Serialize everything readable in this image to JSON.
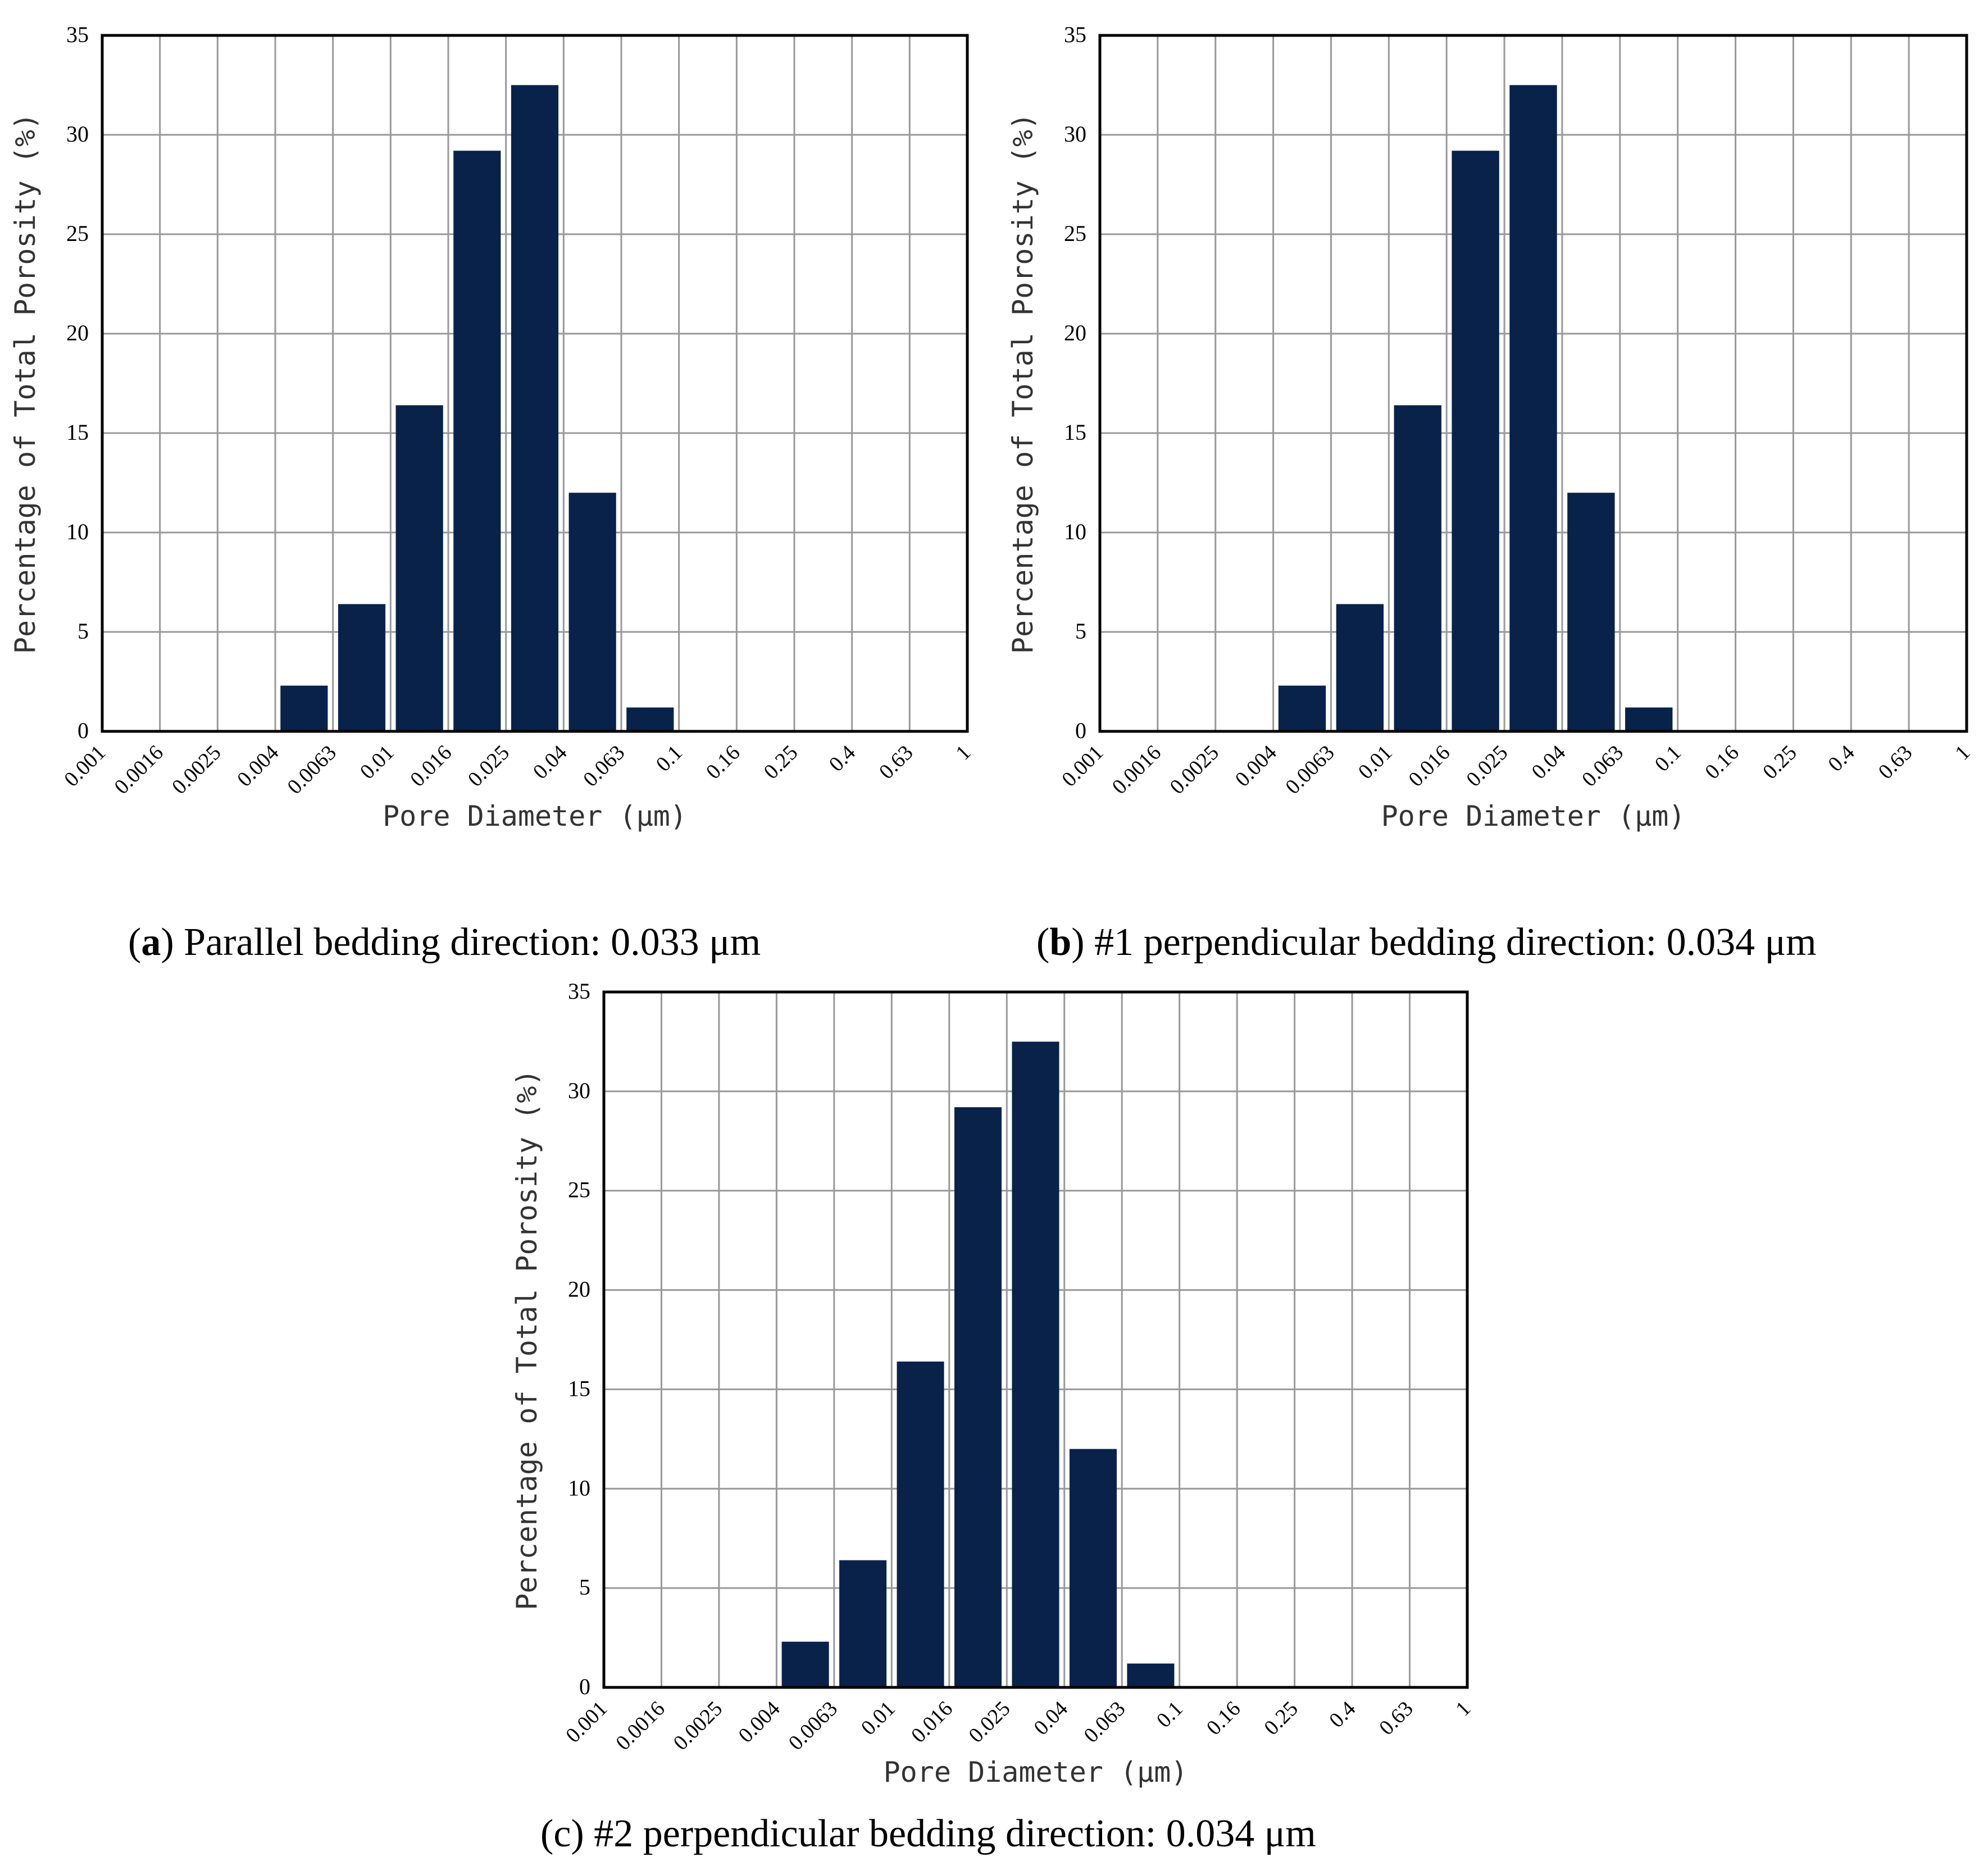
{
  "figure": {
    "captions": [
      {
        "letter": "a",
        "text": "Parallel bedding direction: 0.033 μm"
      },
      {
        "letter": "b",
        "text": "#1 perpendicular bedding direction: 0.034 μm"
      },
      {
        "letter": "c",
        "text": "#2 perpendicular bedding direction: 0.034 μm"
      }
    ]
  },
  "colors": {
    "bar": "#08224a",
    "grid": "#999999",
    "axis": "#000000"
  },
  "chart_data": [
    {
      "type": "bar",
      "panel": "a",
      "title": "",
      "xlabel": "Pore Diameter (μm)",
      "ylabel": "Percentage of Total Porosity (%)",
      "ylim": [
        0,
        35
      ],
      "yticks": [
        0,
        5,
        10,
        15,
        20,
        25,
        30,
        35
      ],
      "xticks": [
        "0.001",
        "0.0016",
        "0.0025",
        "0.004",
        "0.0063",
        "0.01",
        "0.016",
        "0.025",
        "0.04",
        "0.063",
        "0.1",
        "0.16",
        "0.25",
        "0.4",
        "0.63",
        "1"
      ],
      "categories": [
        "0.004-0.0063",
        "0.0063-0.01",
        "0.01-0.016",
        "0.016-0.025",
        "0.025-0.04",
        "0.04-0.063",
        "0.063-0.1"
      ],
      "values": [
        2.3,
        6.4,
        16.4,
        29.2,
        32.5,
        12.0,
        1.2
      ],
      "grid": true
    },
    {
      "type": "bar",
      "panel": "b",
      "title": "",
      "xlabel": "Pore Diameter (μm)",
      "ylabel": "Percentage of Total Porosity (%)",
      "ylim": [
        0,
        35
      ],
      "yticks": [
        0,
        5,
        10,
        15,
        20,
        25,
        30,
        35
      ],
      "xticks": [
        "0.001",
        "0.0016",
        "0.0025",
        "0.004",
        "0.0063",
        "0.01",
        "0.016",
        "0.025",
        "0.04",
        "0.063",
        "0.1",
        "0.16",
        "0.25",
        "0.4",
        "0.63",
        "1"
      ],
      "categories": [
        "0.004-0.0063",
        "0.0063-0.01",
        "0.01-0.016",
        "0.016-0.025",
        "0.025-0.04",
        "0.04-0.063",
        "0.063-0.1"
      ],
      "values": [
        2.3,
        6.4,
        16.4,
        29.2,
        32.5,
        12.0,
        1.2
      ],
      "grid": true
    },
    {
      "type": "bar",
      "panel": "c",
      "title": "",
      "xlabel": "Pore Diameter (μm)",
      "ylabel": "Percentage of Total Porosity (%)",
      "ylim": [
        0,
        35
      ],
      "yticks": [
        0,
        5,
        10,
        15,
        20,
        25,
        30,
        35
      ],
      "xticks": [
        "0.001",
        "0.0016",
        "0.0025",
        "0.004",
        "0.0063",
        "0.01",
        "0.016",
        "0.025",
        "0.04",
        "0.063",
        "0.1",
        "0.16",
        "0.25",
        "0.4",
        "0.63",
        "1"
      ],
      "categories": [
        "0.004-0.0063",
        "0.0063-0.01",
        "0.01-0.016",
        "0.016-0.025",
        "0.025-0.04",
        "0.04-0.063",
        "0.063-0.1"
      ],
      "values": [
        2.3,
        6.4,
        16.4,
        29.2,
        32.5,
        12.0,
        1.2
      ],
      "grid": true
    }
  ]
}
